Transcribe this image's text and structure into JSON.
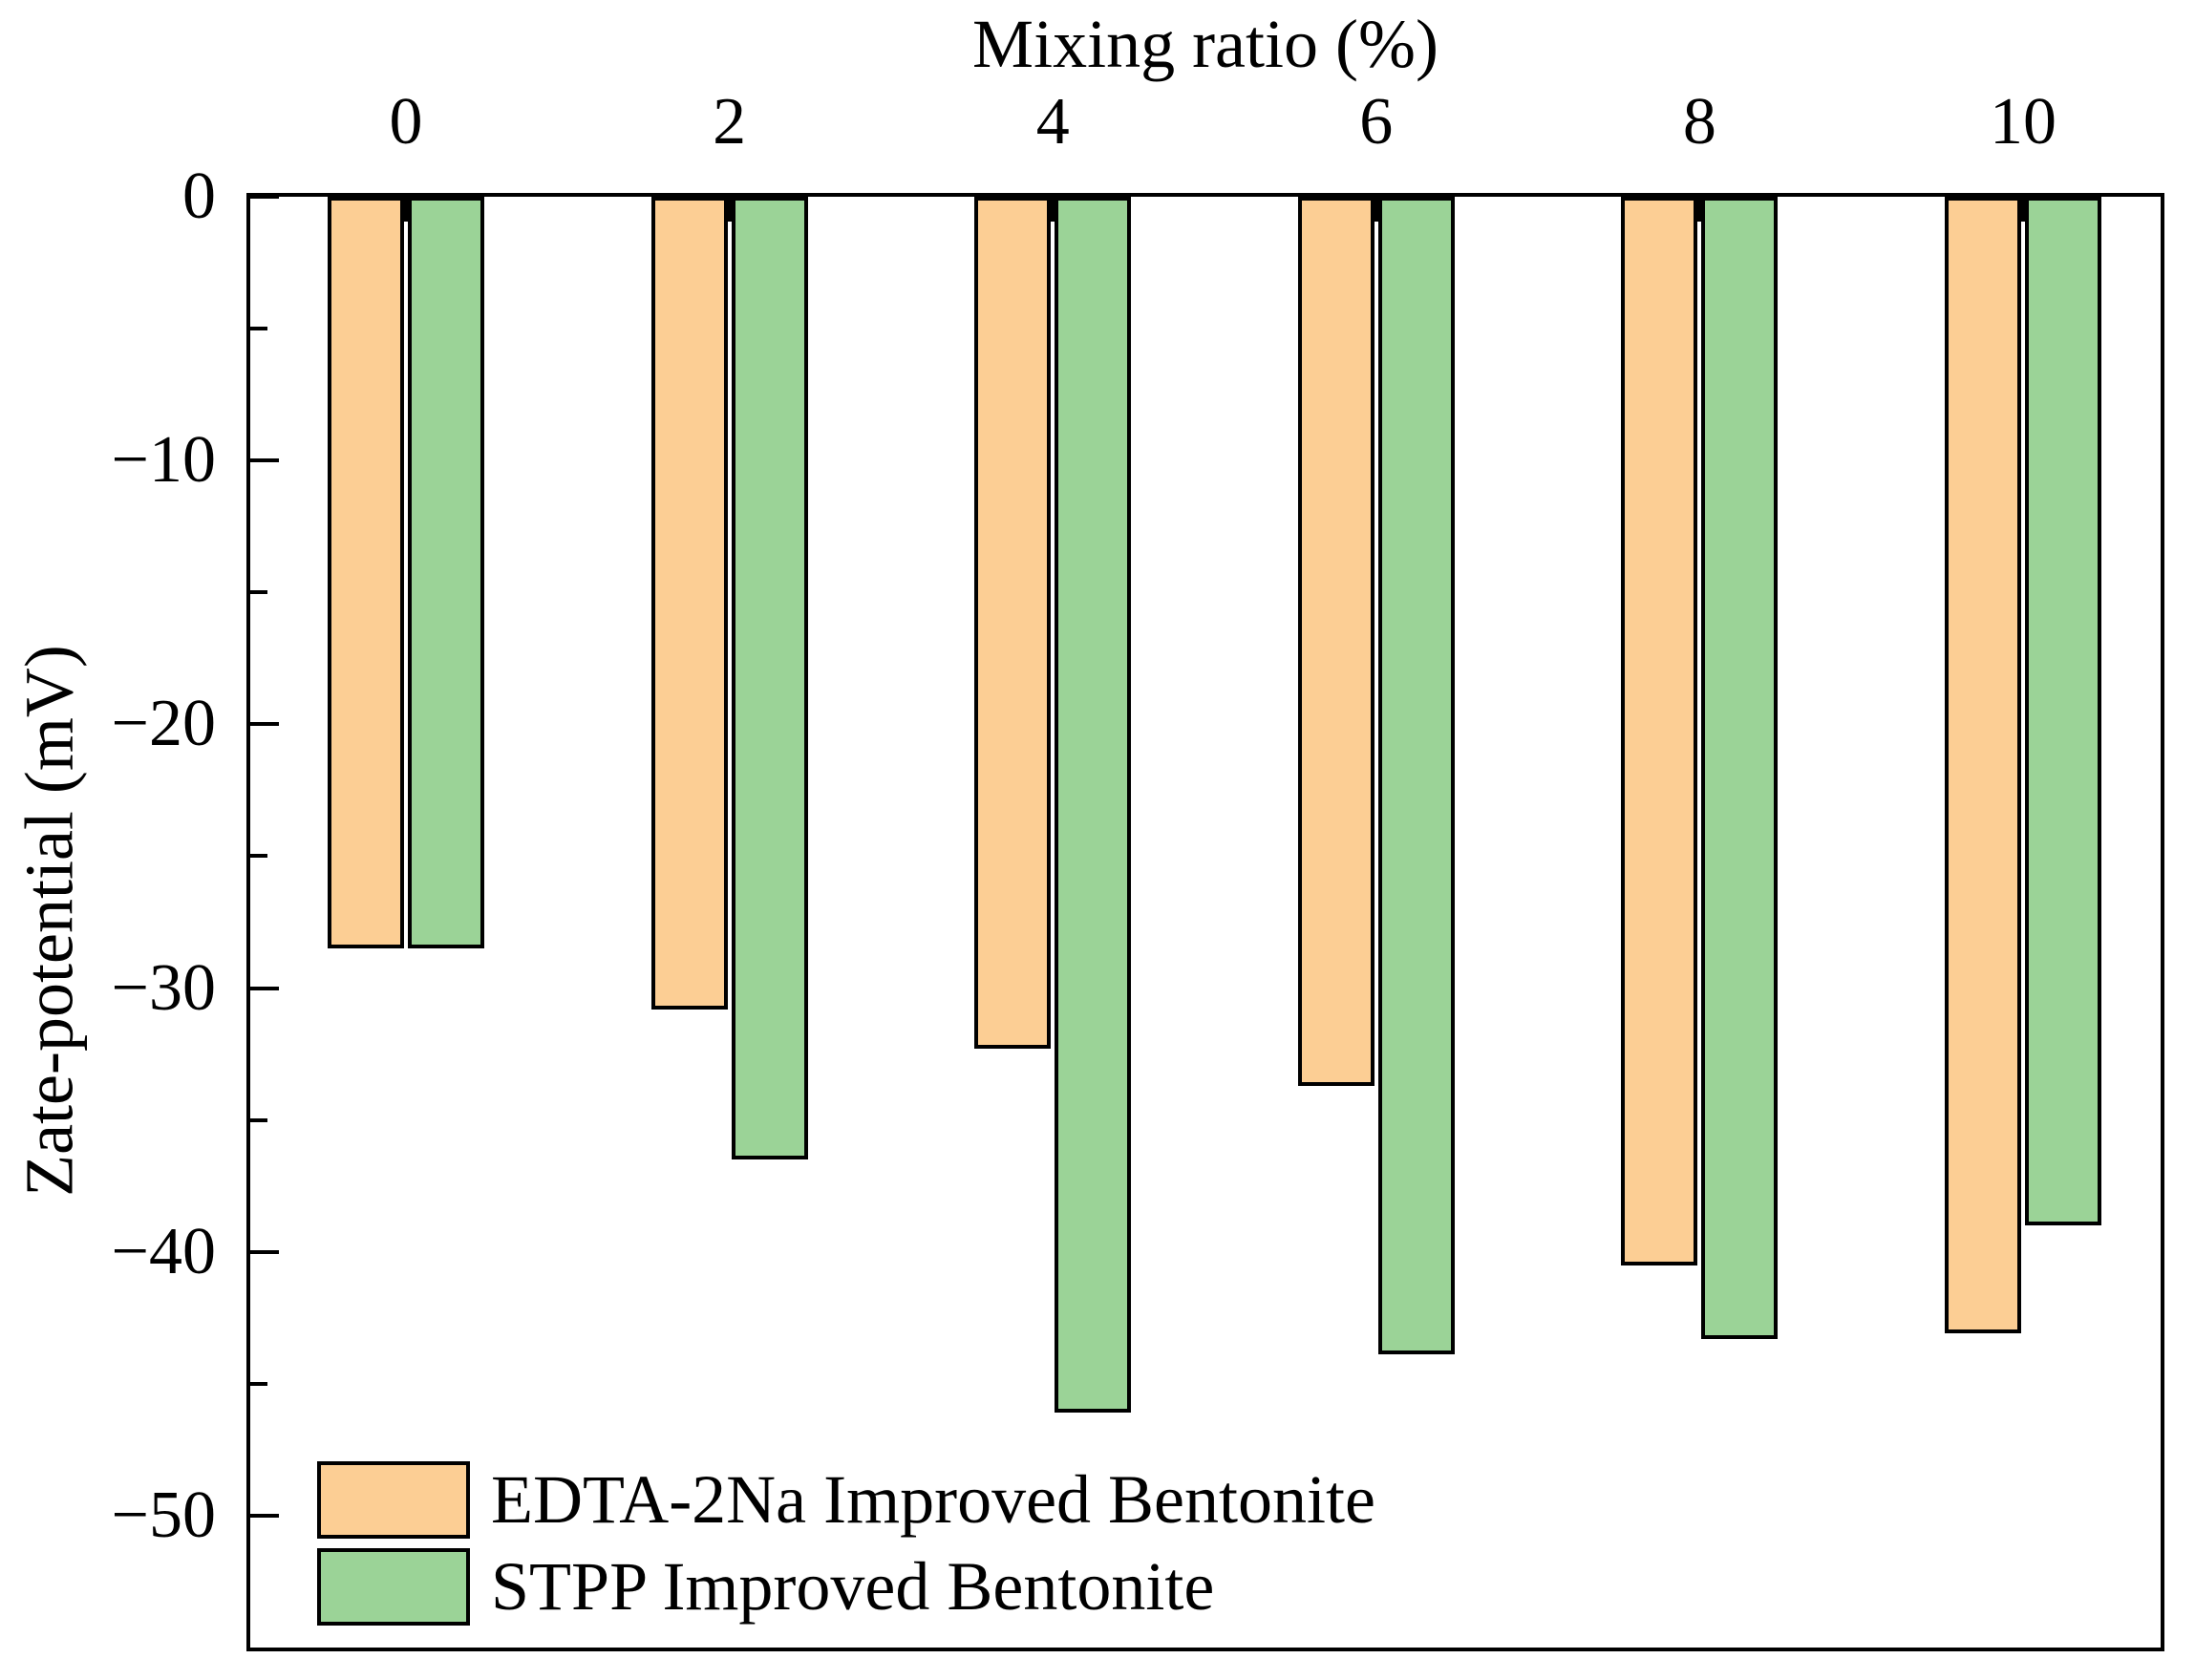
{
  "chart_data": {
    "type": "bar",
    "title": "Mixing ratio (%)",
    "xlabel": "Mixing ratio (%)",
    "ylabel": "Zate-potential (mV)",
    "categories": [
      "0",
      "2",
      "4",
      "6",
      "8",
      "10"
    ],
    "xtick_labels": [
      "0",
      "2",
      "4",
      "6",
      "8",
      "10"
    ],
    "x_axis_position": "top",
    "ylim": [
      -55,
      0
    ],
    "yticks_major": [
      0,
      -10,
      -20,
      -30,
      -40,
      -50
    ],
    "ytick_labels": [
      "0",
      "−10",
      "−20",
      "−30",
      "−40",
      "−50"
    ],
    "yticks_minor": [
      -5,
      -15,
      -25,
      -35,
      -45
    ],
    "grid": false,
    "legend_position": "bottom-left",
    "series": [
      {
        "name": "EDTA-2Na Improved Bentonite",
        "color": "#FCCE94",
        "values": [
          -28.5,
          -30.8,
          -32.3,
          -33.7,
          -40.5,
          -43.1
        ]
      },
      {
        "name": "STPP Improved Bentonite",
        "color": "#9BD397",
        "values": [
          -28.5,
          -36.5,
          -46.1,
          -43.9,
          -43.3,
          -39.0
        ]
      }
    ],
    "colors": {
      "bar_edge": "#000000",
      "axis": "#000000",
      "background": "#FFFFFF"
    }
  }
}
